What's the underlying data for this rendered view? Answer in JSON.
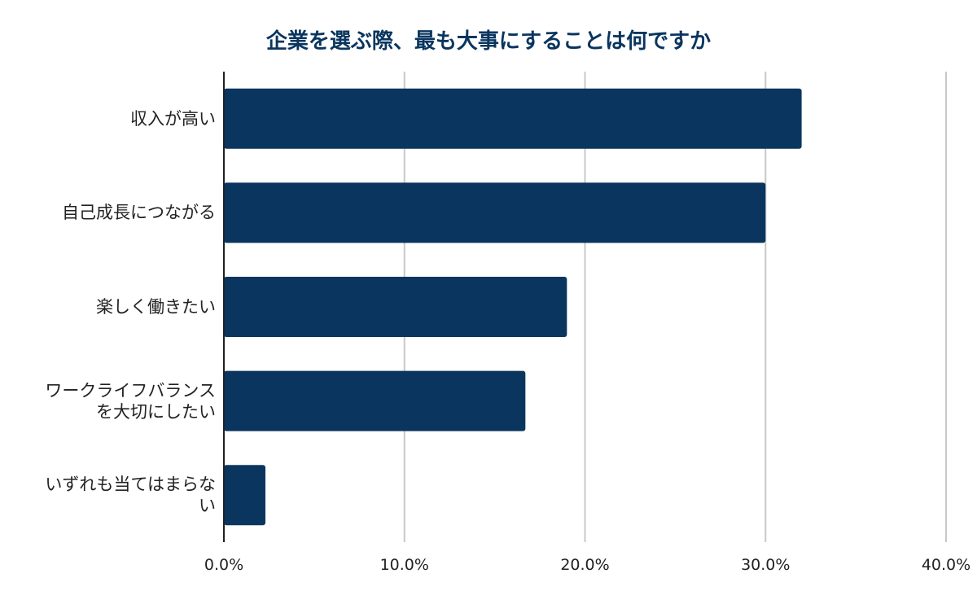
{
  "colors": {
    "bar": "#0a355e",
    "grid": "#c8c8c8",
    "axis": "#222222",
    "title": "#0a355e"
  },
  "chart_data": {
    "type": "bar",
    "orientation": "horizontal",
    "title": "企業を選ぶ際、最も大事にすることは何ですか",
    "xlabel": "",
    "ylabel": "",
    "categories": [
      "収入が高い",
      "自己成長につながる",
      "楽しく働きたい",
      "ワークライフバランスを大切にしたい",
      "いずれも当てはまらない"
    ],
    "values": [
      32.0,
      30.0,
      19.0,
      16.7,
      2.3
    ],
    "xlim": [
      0,
      40
    ],
    "ticks": [
      0,
      10,
      20,
      30,
      40
    ],
    "tick_labels": [
      "0.0%",
      "10.0%",
      "20.0%",
      "30.0%",
      "40.0%"
    ],
    "grid": true,
    "legend": "none"
  }
}
